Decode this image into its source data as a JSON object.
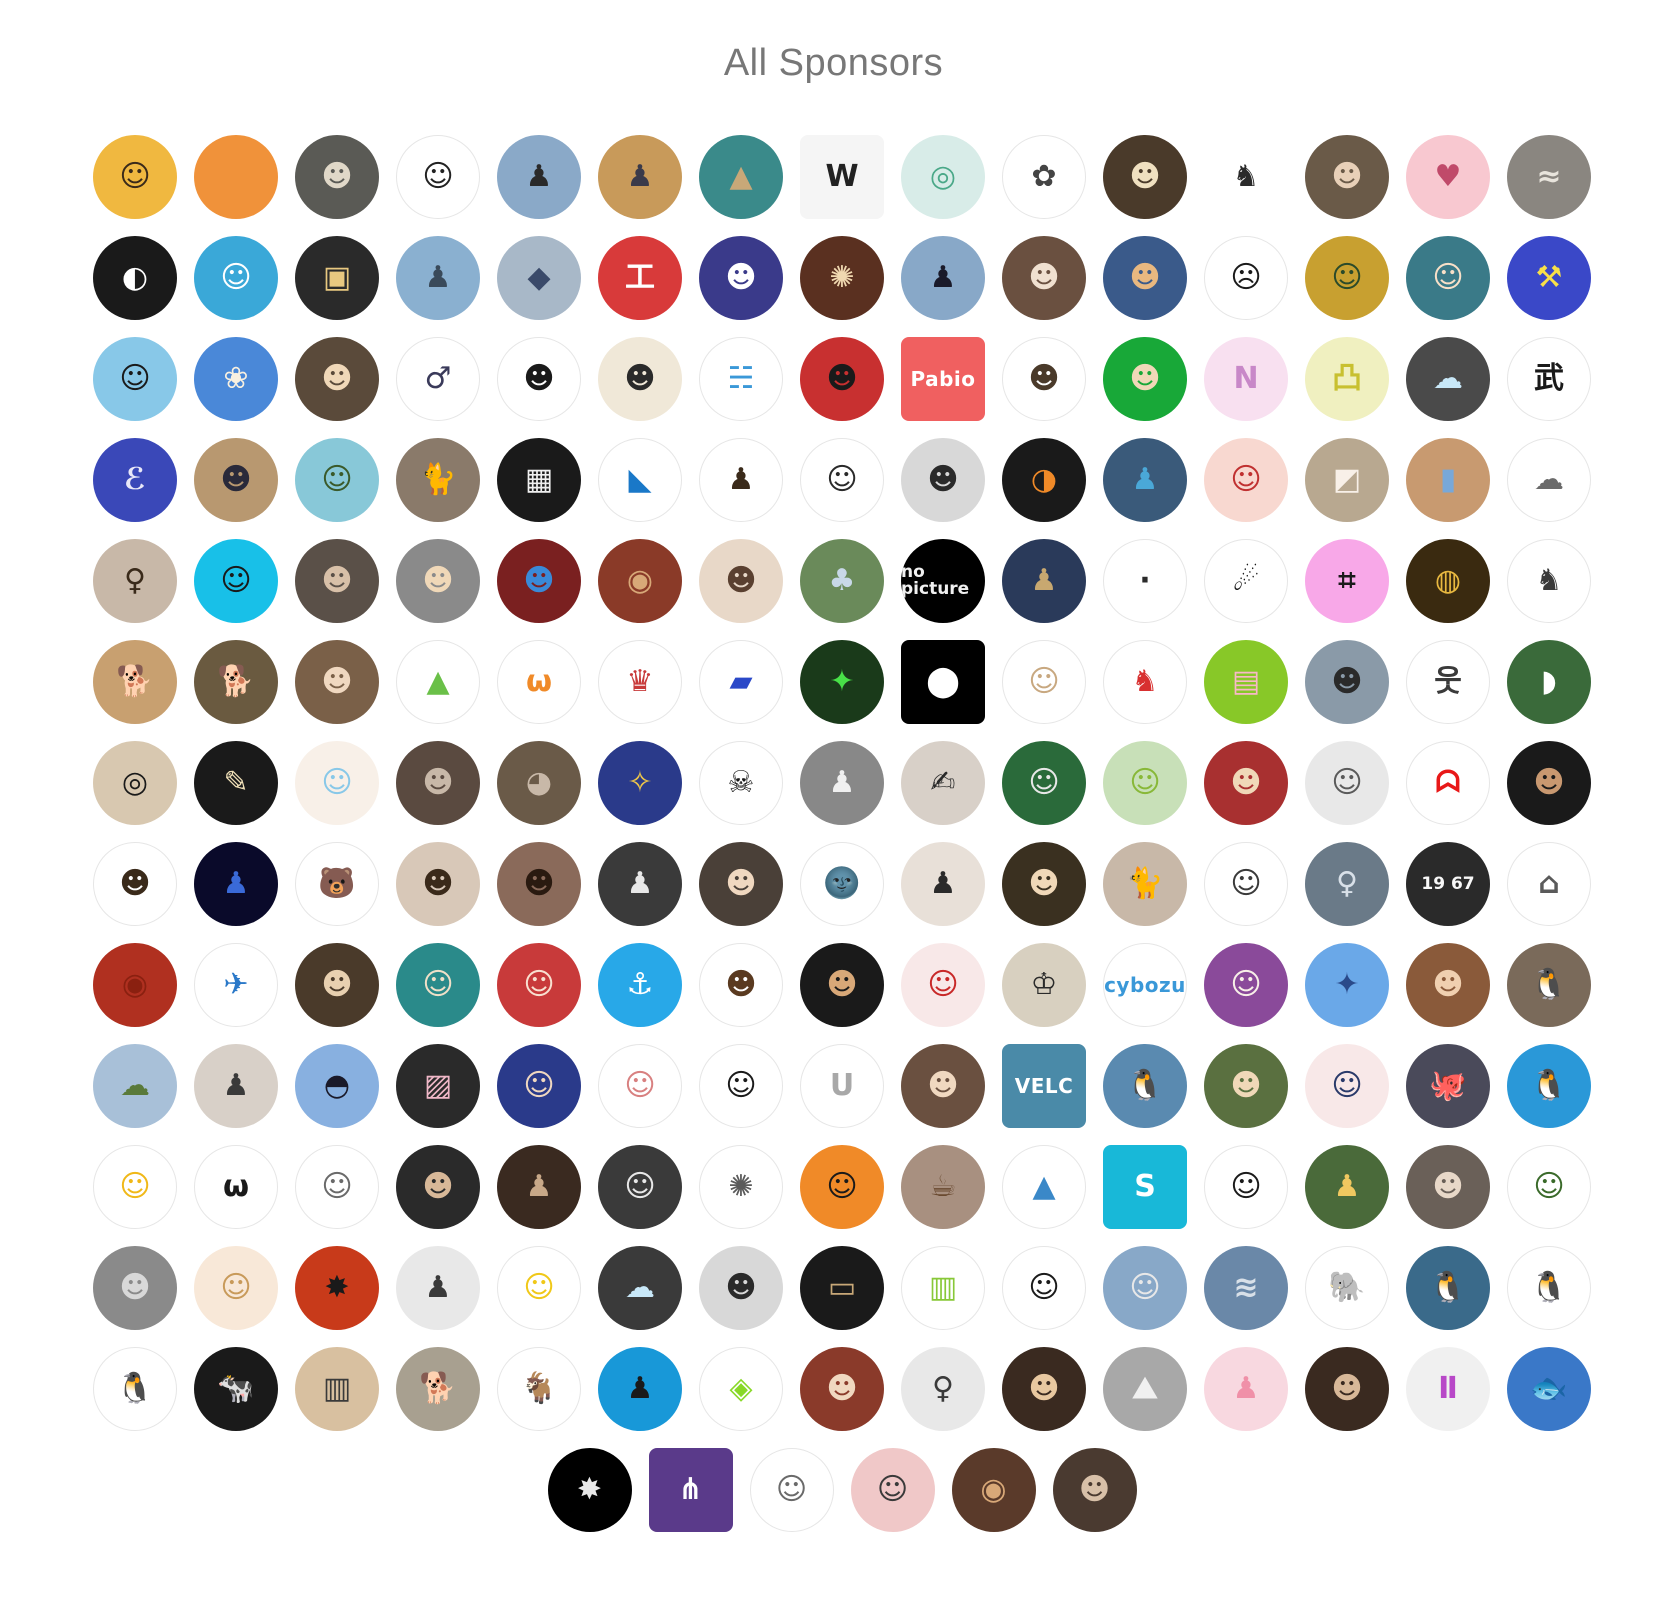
{
  "title": "All Sponsors",
  "rows": [
    [
      {
        "bg": "#f0b840",
        "fg": "#3a2a1a",
        "glyph": "☺"
      },
      {
        "bg": "#f0923a",
        "fg": "#f0923a",
        "glyph": ""
      },
      {
        "bg": "#5a5a55",
        "fg": "#e0d8c8",
        "glyph": "☻"
      },
      {
        "bg": "#ffffff",
        "fg": "#222222",
        "glyph": "☺",
        "outlined": true
      },
      {
        "bg": "#8aa9c8",
        "fg": "#2a2a2a",
        "glyph": "♟"
      },
      {
        "bg": "#c89a5a",
        "fg": "#3a3a4a",
        "glyph": "♟"
      },
      {
        "bg": "#3a8a8a",
        "fg": "#c8a878",
        "glyph": "▲"
      },
      {
        "bg": "#f5f5f5",
        "fg": "#222222",
        "glyph": "W",
        "square": true
      },
      {
        "bg": "#d8ece8",
        "fg": "#4aa888",
        "glyph": "◎"
      },
      {
        "bg": "#ffffff",
        "fg": "#444444",
        "glyph": "✿",
        "outlined": true
      },
      {
        "bg": "#4a3a2a",
        "fg": "#f0e0c0",
        "glyph": "☻"
      },
      {
        "bg": "#ffffff",
        "fg": "#2a2a2a",
        "glyph": "♞"
      },
      {
        "bg": "#6a5a48",
        "fg": "#e8d0b8",
        "glyph": "☻"
      },
      {
        "bg": "#f8c8d0",
        "fg": "#c04a6a",
        "glyph": "♥"
      },
      {
        "bg": "#8a8680",
        "fg": "#e8e4dc",
        "glyph": "≈"
      }
    ],
    [
      {
        "bg": "#1a1a1a",
        "fg": "#ffffff",
        "glyph": "◐"
      },
      {
        "bg": "#3aa8d8",
        "fg": "#ffffff",
        "glyph": "☺"
      },
      {
        "bg": "#2a2a2a",
        "fg": "#e8c880",
        "glyph": "▣"
      },
      {
        "bg": "#8ab0d0",
        "fg": "#3a4a5a",
        "glyph": "♟"
      },
      {
        "bg": "#a8b8c8",
        "fg": "#3a4a6a",
        "glyph": "◆"
      },
      {
        "bg": "#d83a3a",
        "fg": "#ffffff",
        "glyph": "工"
      },
      {
        "bg": "#3a3a8a",
        "fg": "#ffffff",
        "glyph": "☻"
      },
      {
        "bg": "#5a3020",
        "fg": "#f0d8b0",
        "glyph": "✺"
      },
      {
        "bg": "#88a8c8",
        "fg": "#1a1a2a",
        "glyph": "♟"
      },
      {
        "bg": "#6a5040",
        "fg": "#f0e0d0",
        "glyph": "☻"
      },
      {
        "bg": "#3a5a8a",
        "fg": "#e8b880",
        "glyph": "☻"
      },
      {
        "bg": "#ffffff",
        "fg": "#1a1a1a",
        "glyph": "☹",
        "outlined": true
      },
      {
        "bg": "#c8a030",
        "fg": "#2a4a2a",
        "glyph": "☺"
      },
      {
        "bg": "#3a7a88",
        "fg": "#f8e0c8",
        "glyph": "☺"
      },
      {
        "bg": "#3a48c8",
        "fg": "#f8e048",
        "glyph": "⚒"
      }
    ],
    [
      {
        "bg": "#88c8e8",
        "fg": "#1a1a1a",
        "glyph": "☺"
      },
      {
        "bg": "#4a88d8",
        "fg": "#f8f0e0",
        "glyph": "❀"
      },
      {
        "bg": "#5a4a3a",
        "fg": "#f0d8b8",
        "glyph": "☻"
      },
      {
        "bg": "#ffffff",
        "fg": "#3a3a5a",
        "glyph": "♂",
        "outlined": true
      },
      {
        "bg": "#ffffff",
        "fg": "#1a1a1a",
        "glyph": "☻",
        "outlined": true
      },
      {
        "bg": "#f0e8d8",
        "fg": "#2a2a2a",
        "glyph": "☻"
      },
      {
        "bg": "#ffffff",
        "fg": "#3a98d8",
        "glyph": "☵",
        "outlined": true
      },
      {
        "bg": "#c83030",
        "fg": "#1a1a1a",
        "glyph": "☻"
      },
      {
        "bg": "#f06060",
        "fg": "#ffffff",
        "glyph": "Pabio",
        "square": true,
        "word": true
      },
      {
        "bg": "#ffffff",
        "fg": "#4a3a2a",
        "glyph": "☻",
        "outlined": true
      },
      {
        "bg": "#18a838",
        "fg": "#f0d8b8",
        "glyph": "☻"
      },
      {
        "bg": "#f8e0f0",
        "fg": "#c888c8",
        "glyph": "N"
      },
      {
        "bg": "#f0f0c0",
        "fg": "#c8c030",
        "glyph": "凸"
      },
      {
        "bg": "#4a4a4a",
        "fg": "#c8e8f8",
        "glyph": "☁"
      },
      {
        "bg": "#ffffff",
        "fg": "#1a1a1a",
        "glyph": "武",
        "outlined": true
      }
    ],
    [
      {
        "bg": "#3a48b8",
        "fg": "#e8e8f8",
        "glyph": "ℰ"
      },
      {
        "bg": "#b89870",
        "fg": "#2a2a3a",
        "glyph": "☻"
      },
      {
        "bg": "#88c8d8",
        "fg": "#3a5a2a",
        "glyph": "☺"
      },
      {
        "bg": "#8a7a6a",
        "fg": "#3a3028",
        "glyph": "🐈"
      },
      {
        "bg": "#1a1a1a",
        "fg": "#f0f0f0",
        "glyph": "▦"
      },
      {
        "bg": "#ffffff",
        "fg": "#1a78c8",
        "glyph": "◣",
        "outlined": true
      },
      {
        "bg": "#ffffff",
        "fg": "#3a2a1a",
        "glyph": "♟",
        "outlined": true
      },
      {
        "bg": "#ffffff",
        "fg": "#2a2a2a",
        "glyph": "☺",
        "outlined": true
      },
      {
        "bg": "#d8d8d8",
        "fg": "#2a2a2a",
        "glyph": "☻"
      },
      {
        "bg": "#1a1a1a",
        "fg": "#f08a28",
        "glyph": "◑"
      },
      {
        "bg": "#3a5a7a",
        "fg": "#4aa8d8",
        "glyph": "♟"
      },
      {
        "bg": "#f8d8d0",
        "fg": "#c03030",
        "glyph": "☺"
      },
      {
        "bg": "#b8a890",
        "fg": "#f8f0e8",
        "glyph": "◩"
      },
      {
        "bg": "#c89a70",
        "fg": "#78a8d8",
        "glyph": "▮"
      },
      {
        "bg": "#ffffff",
        "fg": "#6a6a6a",
        "glyph": "☁",
        "outlined": true
      }
    ],
    [
      {
        "bg": "#c8b8a8",
        "fg": "#3a2a1a",
        "glyph": "♀"
      },
      {
        "bg": "#18c0e8",
        "fg": "#1a1a1a",
        "glyph": "☺"
      },
      {
        "bg": "#5a5048",
        "fg": "#d8c0a8",
        "glyph": "☻"
      },
      {
        "bg": "#8a8a8a",
        "fg": "#f0d8b8",
        "glyph": "☻"
      },
      {
        "bg": "#7a2020",
        "fg": "#3a8ad8",
        "glyph": "☻"
      },
      {
        "bg": "#8a3a28",
        "fg": "#d8a878",
        "glyph": "◉"
      },
      {
        "bg": "#e8d8c8",
        "fg": "#5a4030",
        "glyph": "☻"
      },
      {
        "bg": "#6a8a5a",
        "fg": "#c8d8e8",
        "glyph": "♣"
      },
      {
        "bg": "#000000",
        "fg": "#f0f0f0",
        "glyph": "no picture",
        "small": true
      },
      {
        "bg": "#2a3a5a",
        "fg": "#c8a870",
        "glyph": "♟"
      },
      {
        "bg": "#ffffff",
        "fg": "#2a2a2a",
        "glyph": "·",
        "outlined": true
      },
      {
        "bg": "#ffffff",
        "fg": "#1a1a1a",
        "glyph": "☄",
        "outlined": true
      },
      {
        "bg": "#f8a8e8",
        "fg": "#1a1a1a",
        "glyph": "⌗"
      },
      {
        "bg": "#3a2a10",
        "fg": "#e8b840",
        "glyph": "◍"
      },
      {
        "bg": "#ffffff",
        "fg": "#3a3a3a",
        "glyph": "♞",
        "outlined": true
      }
    ],
    [
      {
        "bg": "#c8a070",
        "fg": "#6a4020",
        "glyph": "🐕"
      },
      {
        "bg": "#6a5a40",
        "fg": "#e8c898",
        "glyph": "🐕"
      },
      {
        "bg": "#7a6048",
        "fg": "#f0d8c0",
        "glyph": "☻"
      },
      {
        "bg": "#ffffff",
        "fg": "#6ac048",
        "glyph": "▲",
        "outlined": true
      },
      {
        "bg": "#ffffff",
        "fg": "#f08a28",
        "glyph": "ω",
        "outlined": true
      },
      {
        "bg": "#ffffff",
        "fg": "#c83a3a",
        "glyph": "♛",
        "outlined": true
      },
      {
        "bg": "#ffffff",
        "fg": "#2a48c8",
        "glyph": "▰",
        "outlined": true
      },
      {
        "bg": "#1a3a1a",
        "fg": "#48e048",
        "glyph": "✦"
      },
      {
        "bg": "#000000",
        "fg": "#ffffff",
        "glyph": "⬤",
        "square": true
      },
      {
        "bg": "#ffffff",
        "fg": "#c8a880",
        "glyph": "☺",
        "outlined": true
      },
      {
        "bg": "#ffffff",
        "fg": "#d83030",
        "glyph": "♞",
        "outlined": true
      },
      {
        "bg": "#88c828",
        "fg": "#f8b8c8",
        "glyph": "▤"
      },
      {
        "bg": "#8a9aa8",
        "fg": "#2a2a2a",
        "glyph": "☻"
      },
      {
        "bg": "#ffffff",
        "fg": "#3a3a3a",
        "glyph": "웃",
        "outlined": true
      },
      {
        "bg": "#3a6a3a",
        "fg": "#ffffff",
        "glyph": "◗"
      }
    ],
    [
      {
        "bg": "#d8c8b0",
        "fg": "#1a1a1a",
        "glyph": "◎"
      },
      {
        "bg": "#1a1a1a",
        "fg": "#f0e0b8",
        "glyph": "✎"
      },
      {
        "bg": "#f8f0e8",
        "fg": "#88c8e8",
        "glyph": "☺"
      },
      {
        "bg": "#5a4a40",
        "fg": "#c8b8a8",
        "glyph": "☻"
      },
      {
        "bg": "#6a5a48",
        "fg": "#c8b8a8",
        "glyph": "◕"
      },
      {
        "bg": "#2a3a8a",
        "fg": "#f0c848",
        "glyph": "✧"
      },
      {
        "bg": "#ffffff",
        "fg": "#1a1a1a",
        "glyph": "☠",
        "outlined": true
      },
      {
        "bg": "#888888",
        "fg": "#f0f0f0",
        "glyph": "♟"
      },
      {
        "bg": "#d8d0c8",
        "fg": "#2a2a2a",
        "glyph": "✍"
      },
      {
        "bg": "#2a6a3a",
        "fg": "#e8e8e8",
        "glyph": "☺"
      },
      {
        "bg": "#c8e0b8",
        "fg": "#88b838",
        "glyph": "☺"
      },
      {
        "bg": "#a83030",
        "fg": "#f0d8b8",
        "glyph": "☻"
      },
      {
        "bg": "#e8e8e8",
        "fg": "#5a5a5a",
        "glyph": "☺"
      },
      {
        "bg": "#ffffff",
        "fg": "#e81818",
        "glyph": "ᗣ",
        "outlined": true
      },
      {
        "bg": "#1a1a1a",
        "fg": "#c89870",
        "glyph": "☻"
      }
    ],
    [
      {
        "bg": "#ffffff",
        "fg": "#3a2a1a",
        "glyph": "☻",
        "outlined": true
      },
      {
        "bg": "#0a0a2a",
        "fg": "#3a6ad8",
        "glyph": "♟"
      },
      {
        "bg": "#ffffff",
        "fg": "#c8902a",
        "glyph": "🐻",
        "outlined": true
      },
      {
        "bg": "#d8c8b8",
        "fg": "#3a2a1a",
        "glyph": "☻"
      },
      {
        "bg": "#8a6a5a",
        "fg": "#2a1a10",
        "glyph": "☻"
      },
      {
        "bg": "#3a3a3a",
        "fg": "#e8e8e8",
        "glyph": "♟"
      },
      {
        "bg": "#4a4038",
        "fg": "#f0d8c0",
        "glyph": "☻"
      },
      {
        "bg": "#ffffff",
        "fg": "#4a4a5a",
        "glyph": "🌚",
        "outlined": true
      },
      {
        "bg": "#e8e0d8",
        "fg": "#2a2a2a",
        "glyph": "♟"
      },
      {
        "bg": "#3a3020",
        "fg": "#f0d8b8",
        "glyph": "☻"
      },
      {
        "bg": "#c8b8a8",
        "fg": "#6a5a48",
        "glyph": "🐈"
      },
      {
        "bg": "#ffffff",
        "fg": "#3a3a3a",
        "glyph": "☺",
        "outlined": true
      },
      {
        "bg": "#6a7a88",
        "fg": "#d8e0e8",
        "glyph": "♀"
      },
      {
        "bg": "#2a2a2a",
        "fg": "#f8f8f8",
        "glyph": "19 67",
        "small": true
      },
      {
        "bg": "#ffffff",
        "fg": "#5a5a5a",
        "glyph": "⌂",
        "outlined": true
      }
    ],
    [
      {
        "bg": "#b03020",
        "fg": "#8a2010",
        "glyph": "◉"
      },
      {
        "bg": "#ffffff",
        "fg": "#2a78c8",
        "glyph": "✈",
        "outlined": true
      },
      {
        "bg": "#4a3a2a",
        "fg": "#e8d0b0",
        "glyph": "☻"
      },
      {
        "bg": "#2a8a8a",
        "fg": "#f0e0c8",
        "glyph": "☺"
      },
      {
        "bg": "#c83a3a",
        "fg": "#f8e0d0",
        "glyph": "☺"
      },
      {
        "bg": "#28a8e8",
        "fg": "#ffffff",
        "glyph": "⚓"
      },
      {
        "bg": "#ffffff",
        "fg": "#5a3a20",
        "glyph": "☻",
        "outlined": true
      },
      {
        "bg": "#1a1a1a",
        "fg": "#d8a878",
        "glyph": "☻"
      },
      {
        "bg": "#f8e8e8",
        "fg": "#c82828",
        "glyph": "☺"
      },
      {
        "bg": "#d8d0c0",
        "fg": "#2a2a2a",
        "glyph": "♔"
      },
      {
        "bg": "#ffffff",
        "fg": "#3a98d8",
        "glyph": "cybozu",
        "outlined": true,
        "word": true
      },
      {
        "bg": "#8a4a9a",
        "fg": "#f8f0e8",
        "glyph": "☺"
      },
      {
        "bg": "#6aa8e8",
        "fg": "#2a4a8a",
        "glyph": "✦"
      },
      {
        "bg": "#8a5a3a",
        "fg": "#f0d0b0",
        "glyph": "☻"
      },
      {
        "bg": "#7a6a5a",
        "fg": "#2a2a2a",
        "glyph": "🐧"
      }
    ],
    [
      {
        "bg": "#a8c0d8",
        "fg": "#5a7a3a",
        "glyph": "☁"
      },
      {
        "bg": "#d8d0c8",
        "fg": "#3a3a3a",
        "glyph": "♟"
      },
      {
        "bg": "#88b0e0",
        "fg": "#1a1a2a",
        "glyph": "◓"
      },
      {
        "bg": "#2a2a2a",
        "fg": "#f0b8c8",
        "glyph": "▨"
      },
      {
        "bg": "#2a3a8a",
        "fg": "#f0d8c0",
        "glyph": "☺"
      },
      {
        "bg": "#ffffff",
        "fg": "#d88080",
        "glyph": "☺",
        "outlined": true
      },
      {
        "bg": "#ffffff",
        "fg": "#1a1a1a",
        "glyph": "☺",
        "outlined": true
      },
      {
        "bg": "#ffffff",
        "fg": "#a8a8a8",
        "glyph": "U",
        "outlined": true
      },
      {
        "bg": "#6a5040",
        "fg": "#f0d8c0",
        "glyph": "☻"
      },
      {
        "bg": "#4a8aa8",
        "fg": "#ffffff",
        "glyph": "VELC",
        "square": true,
        "word": true
      },
      {
        "bg": "#5a8ab0",
        "fg": "#1a1a1a",
        "glyph": "🐧"
      },
      {
        "bg": "#5a7040",
        "fg": "#f0d8b8",
        "glyph": "☻"
      },
      {
        "bg": "#f8e8e8",
        "fg": "#2a3a6a",
        "glyph": "☺"
      },
      {
        "bg": "#4a4a5a",
        "fg": "#8a8aa8",
        "glyph": "🐙"
      },
      {
        "bg": "#2a98d8",
        "fg": "#ffffff",
        "glyph": "🐧"
      }
    ],
    [
      {
        "bg": "#ffffff",
        "fg": "#f0b818",
        "glyph": "☺",
        "outlined": true
      },
      {
        "bg": "#ffffff",
        "fg": "#1a1a1a",
        "glyph": "ω",
        "outlined": true
      },
      {
        "bg": "#ffffff",
        "fg": "#6a6a6a",
        "glyph": "☺",
        "outlined": true
      },
      {
        "bg": "#2a2a2a",
        "fg": "#d8b898",
        "glyph": "☻"
      },
      {
        "bg": "#3a2a20",
        "fg": "#c8a888",
        "glyph": "♟"
      },
      {
        "bg": "#3a3a3a",
        "fg": "#e8e8e8",
        "glyph": "☺"
      },
      {
        "bg": "#ffffff",
        "fg": "#5a5a5a",
        "glyph": "✺",
        "outlined": true
      },
      {
        "bg": "#f08a28",
        "fg": "#1a1a1a",
        "glyph": "☺"
      },
      {
        "bg": "#a89080",
        "fg": "#6a4a30",
        "glyph": "☕"
      },
      {
        "bg": "#ffffff",
        "fg": "#3a88c8",
        "glyph": "▲",
        "outlined": true
      },
      {
        "bg": "#18b8d8",
        "fg": "#ffffff",
        "glyph": "S",
        "square": true
      },
      {
        "bg": "#ffffff",
        "fg": "#1a1a1a",
        "glyph": "☺",
        "outlined": true
      },
      {
        "bg": "#4a6a3a",
        "fg": "#f0c860",
        "glyph": "♟"
      },
      {
        "bg": "#6a6058",
        "fg": "#e8d8c8",
        "glyph": "☻"
      },
      {
        "bg": "#ffffff",
        "fg": "#3a6a2a",
        "glyph": "☺",
        "outlined": true
      }
    ],
    [
      {
        "bg": "#8a8a8a",
        "fg": "#d8d8d8",
        "glyph": "☻"
      },
      {
        "bg": "#f8e8d8",
        "fg": "#c89a5a",
        "glyph": "☺"
      },
      {
        "bg": "#c83a1a",
        "fg": "#1a1a1a",
        "glyph": "✸"
      },
      {
        "bg": "#e8e8e8",
        "fg": "#3a3a3a",
        "glyph": "♟"
      },
      {
        "bg": "#ffffff",
        "fg": "#f0c818",
        "glyph": "☺",
        "outlined": true
      },
      {
        "bg": "#3a3a3a",
        "fg": "#c8e8f8",
        "glyph": "☁"
      },
      {
        "bg": "#d8d8d8",
        "fg": "#2a2a2a",
        "glyph": "☻"
      },
      {
        "bg": "#1a1a1a",
        "fg": "#c8a878",
        "glyph": "▭"
      },
      {
        "bg": "#ffffff",
        "fg": "#88c838",
        "glyph": "▥",
        "outlined": true
      },
      {
        "bg": "#ffffff",
        "fg": "#1a1a1a",
        "glyph": "☺",
        "outlined": true
      },
      {
        "bg": "#88a8c8",
        "fg": "#e8e8e8",
        "glyph": "☺"
      },
      {
        "bg": "#6a88a8",
        "fg": "#d8e0e8",
        "glyph": "≋"
      },
      {
        "bg": "#ffffff",
        "fg": "#5a5a5a",
        "glyph": "🐘",
        "outlined": true
      },
      {
        "bg": "#3a6a8a",
        "fg": "#f0a8c8",
        "glyph": "🐧"
      },
      {
        "bg": "#ffffff",
        "fg": "#1a1a1a",
        "glyph": "🐧",
        "outlined": true
      }
    ],
    [
      {
        "bg": "#ffffff",
        "fg": "#1a1a1a",
        "glyph": "🐧",
        "outlined": true
      },
      {
        "bg": "#1a1a1a",
        "fg": "#e8e8e8",
        "glyph": "🐄"
      },
      {
        "bg": "#d8c0a0",
        "fg": "#3a3a3a",
        "glyph": "▥"
      },
      {
        "bg": "#a8a090",
        "fg": "#c87a3a",
        "glyph": "🐕"
      },
      {
        "bg": "#ffffff",
        "fg": "#1a1a1a",
        "glyph": "🐐",
        "outlined": true
      },
      {
        "bg": "#1898d8",
        "fg": "#1a1a1a",
        "glyph": "♟"
      },
      {
        "bg": "#ffffff",
        "fg": "#88d828",
        "glyph": "◈",
        "outlined": true
      },
      {
        "bg": "#8a3a2a",
        "fg": "#f0d8c0",
        "glyph": "☻"
      },
      {
        "bg": "#e8e8e8",
        "fg": "#3a3a3a",
        "glyph": "♀"
      },
      {
        "bg": "#3a2a20",
        "fg": "#e8c8a0",
        "glyph": "☻"
      },
      {
        "bg": "#a8a8a8",
        "fg": "#f0f0f0",
        "glyph": "⛰"
      },
      {
        "bg": "#f8d8e0",
        "fg": "#f090a8",
        "glyph": "♟"
      },
      {
        "bg": "#3a2a20",
        "fg": "#d8b898",
        "glyph": "☻"
      },
      {
        "bg": "#f0f0f0",
        "fg": "#b848c8",
        "glyph": "Ⅱ"
      },
      {
        "bg": "#3a78c8",
        "fg": "#a8d8f8",
        "glyph": "🐟"
      }
    ],
    [
      {
        "bg": "#000000",
        "fg": "#e8e8e8",
        "glyph": "✸"
      },
      {
        "bg": "#5a3a8a",
        "fg": "#ffffff",
        "glyph": "⋔",
        "square": true
      },
      {
        "bg": "#ffffff",
        "fg": "#6a6a6a",
        "glyph": "☺",
        "outlined": true
      },
      {
        "bg": "#f0c8c8",
        "fg": "#3a3a3a",
        "glyph": "☺"
      },
      {
        "bg": "#5a3a2a",
        "fg": "#d8a878",
        "glyph": "◉"
      },
      {
        "bg": "#4a3a30",
        "fg": "#d8c0a8",
        "glyph": "☻"
      }
    ]
  ]
}
